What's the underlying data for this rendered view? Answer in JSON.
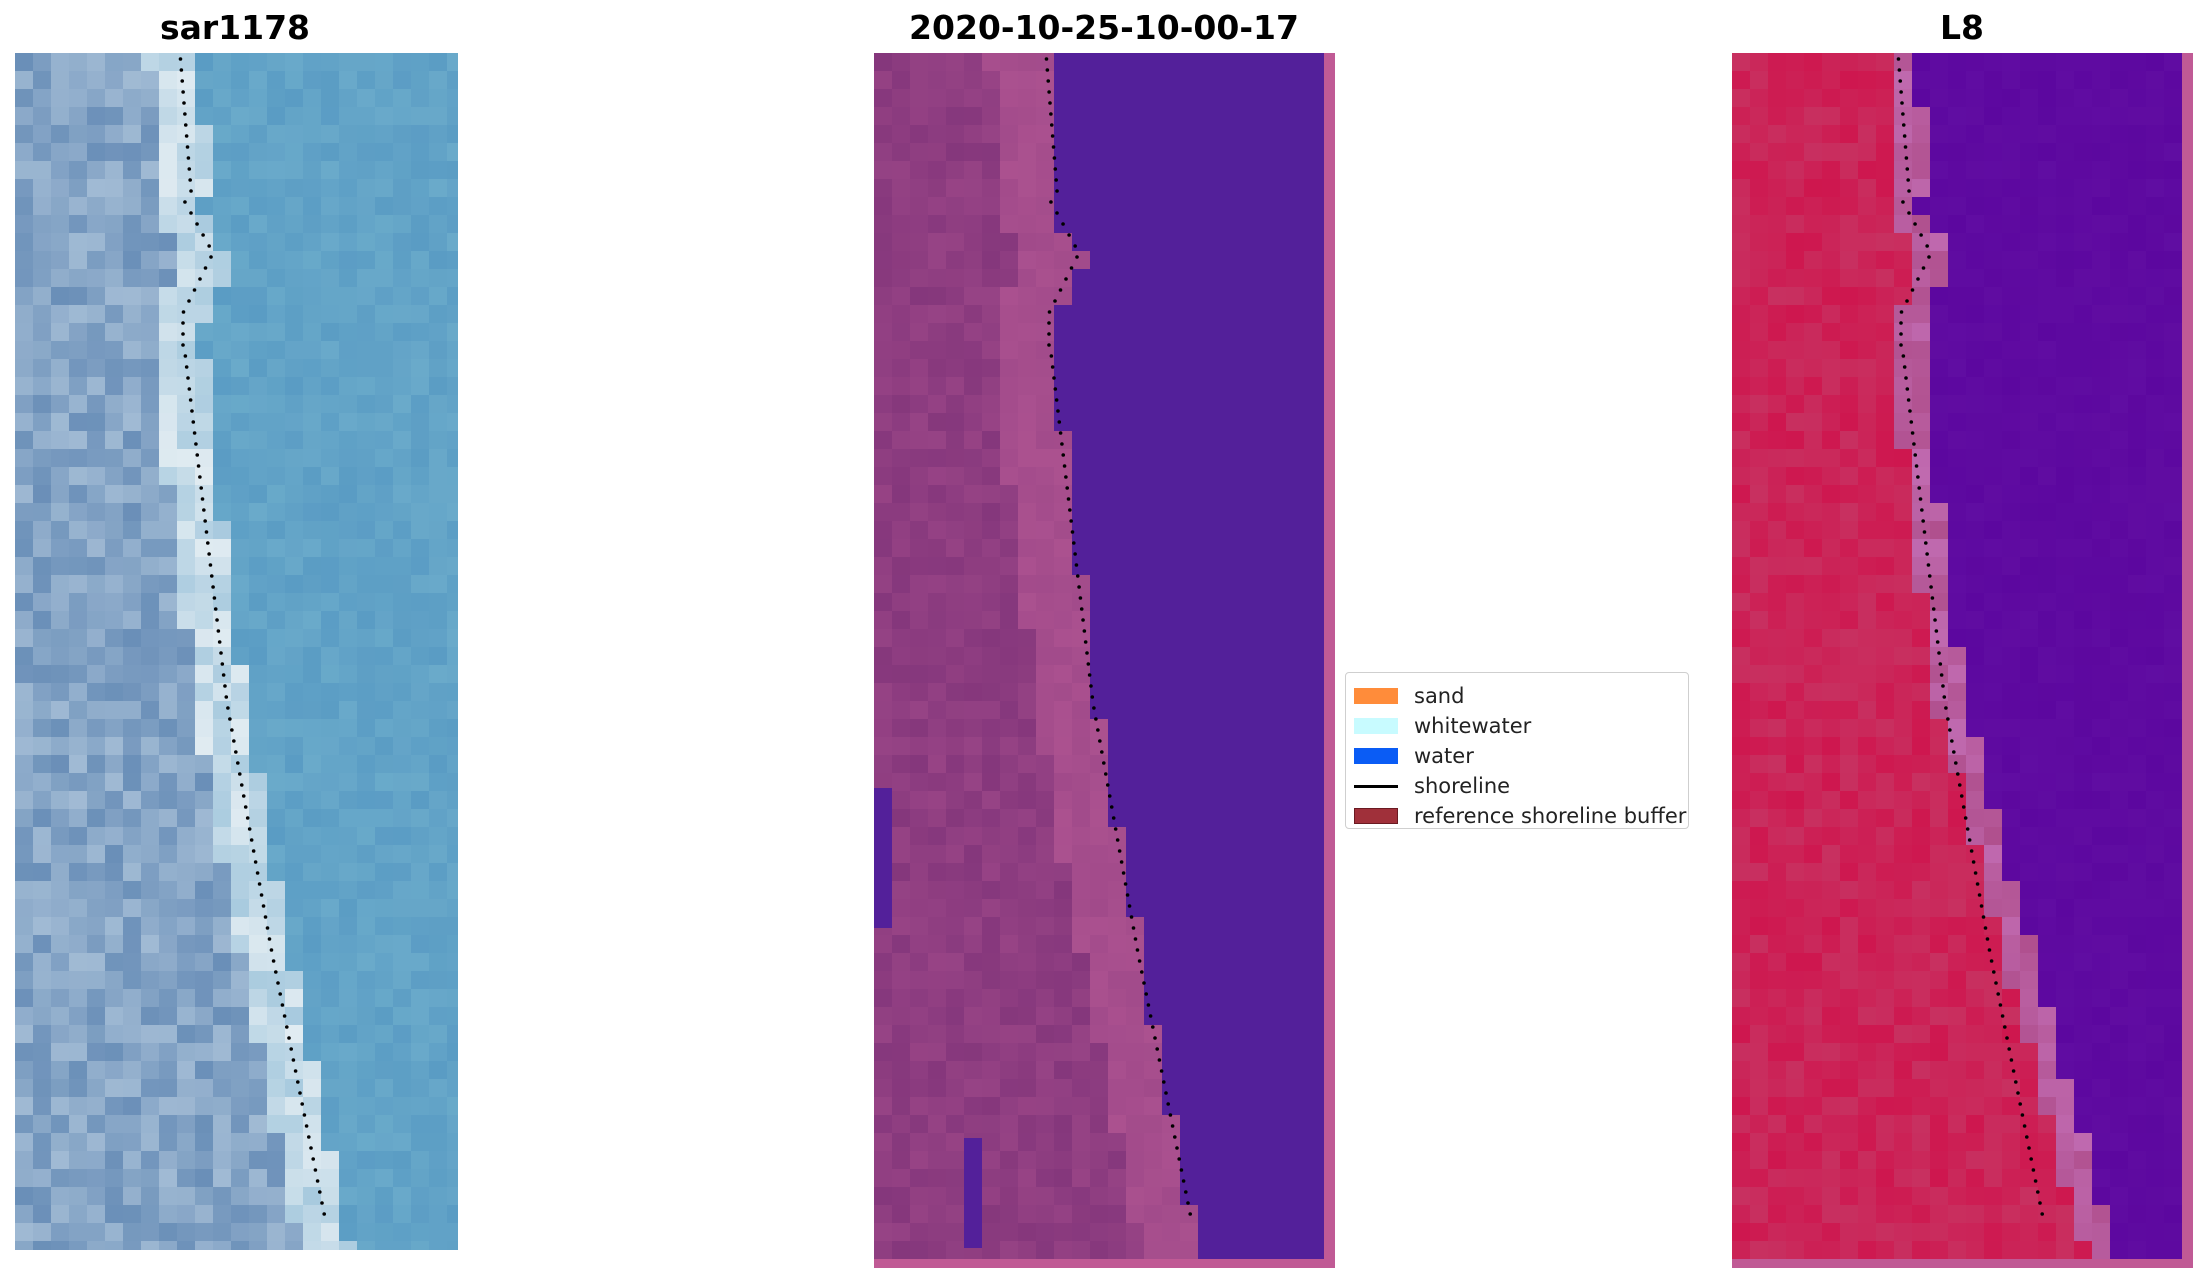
{
  "panels": [
    {
      "title": "sar1178",
      "image": "rgb-satellite-image"
    },
    {
      "title": "2020-10-25-10-00-17",
      "image": "classified-image"
    },
    {
      "title": "L8",
      "image": "mndwi-image"
    }
  ],
  "legend": {
    "items": [
      {
        "label": "sand",
        "color": "#ff8c3a",
        "kind": "patch"
      },
      {
        "label": "whitewater",
        "color": "#c8fbff",
        "kind": "patch"
      },
      {
        "label": "water",
        "color": "#0a5cf5",
        "kind": "patch"
      },
      {
        "label": "shoreline",
        "color": "#000000",
        "kind": "line"
      },
      {
        "label": "reference shoreline buffer",
        "color": "#a0303a",
        "kind": "patch"
      }
    ]
  },
  "colors": {
    "rgb_water": "#5a9cc4",
    "rgb_surf": "#e8f0f4",
    "class_land": "#85377c",
    "class_water": "#53209a",
    "class_border": "#c05a95",
    "mndwi_land": "#c83060",
    "mndwi_water": "#5c079f",
    "mndwi_border": "#c05a95"
  }
}
